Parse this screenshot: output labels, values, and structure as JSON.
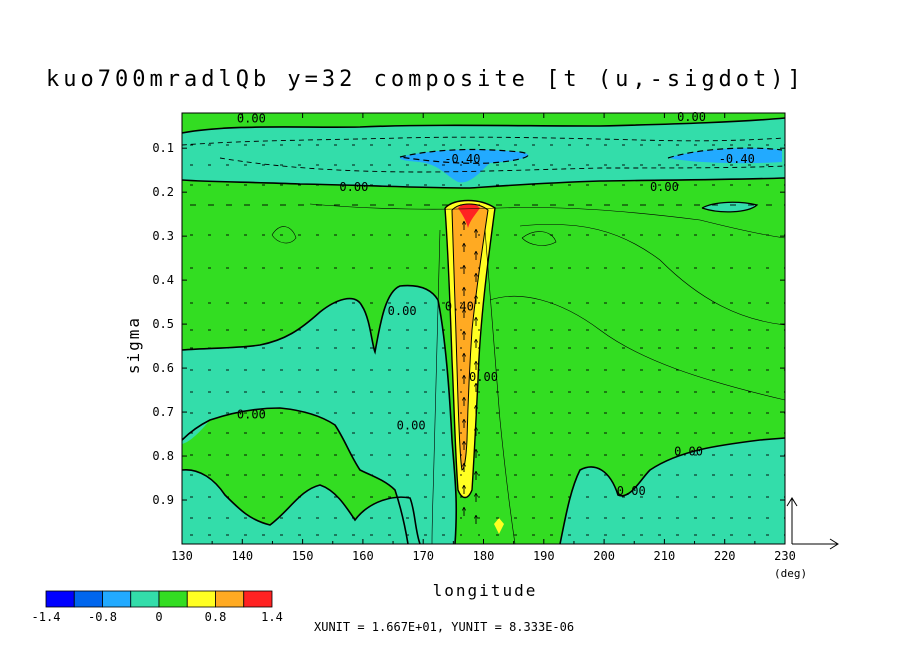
{
  "chart_data": {
    "type": "heatmap",
    "title": "kuo700mradlQb y=32 composite [t (u,-sigdot)]",
    "xlabel": "longitude",
    "ylabel": "sigma",
    "x_unit_label": "(deg)",
    "xlim": [
      130,
      230
    ],
    "ylim": [
      1.0,
      0.02
    ],
    "x_ticks": [
      "130",
      "140",
      "150",
      "160",
      "170",
      "180",
      "190",
      "200",
      "210",
      "220",
      "230"
    ],
    "y_ticks": [
      "0.1",
      "0.2",
      "0.3",
      "0.4",
      "0.5",
      "0.6",
      "0.7",
      "0.8",
      "0.9"
    ],
    "contour_labels": [
      {
        "text": "0.00",
        "x": 141.5,
        "y": 0.033
      },
      {
        "text": "0.00",
        "x": 214.5,
        "y": 0.029
      },
      {
        "text": "-0.40",
        "x": 176.5,
        "y": 0.125
      },
      {
        "text": "-0.40",
        "x": 222.0,
        "y": 0.125
      },
      {
        "text": "0.00",
        "x": 158.5,
        "y": 0.188
      },
      {
        "text": "0.00",
        "x": 210.0,
        "y": 0.188
      },
      {
        "text": "0.00",
        "x": 141.5,
        "y": 0.705
      },
      {
        "text": "0.00",
        "x": 214.0,
        "y": 0.79
      },
      {
        "text": "0.00",
        "x": 166.5,
        "y": 0.47
      },
      {
        "text": "0.00",
        "x": 168.0,
        "y": 0.73
      },
      {
        "text": "0.00",
        "x": 180.0,
        "y": 0.62
      },
      {
        "text": "0.00",
        "x": 204.5,
        "y": 0.88
      },
      {
        "text": "0.40",
        "x": 176.0,
        "y": 0.46
      }
    ],
    "colorbar": {
      "levels": [
        "-1.4",
        "-0.8",
        "0",
        "0.8",
        "1.4"
      ],
      "colors": [
        "#0000ff",
        "#0066ee",
        "#22aaff",
        "#33ddaa",
        "#33dd22",
        "#ffff22",
        "#ffaa22",
        "#ff2222"
      ]
    },
    "grid": false,
    "legend": "colorbar-bottom-left"
  },
  "units_note": "XUNIT = 1.667E+01, YUNIT = 8.333E-06"
}
